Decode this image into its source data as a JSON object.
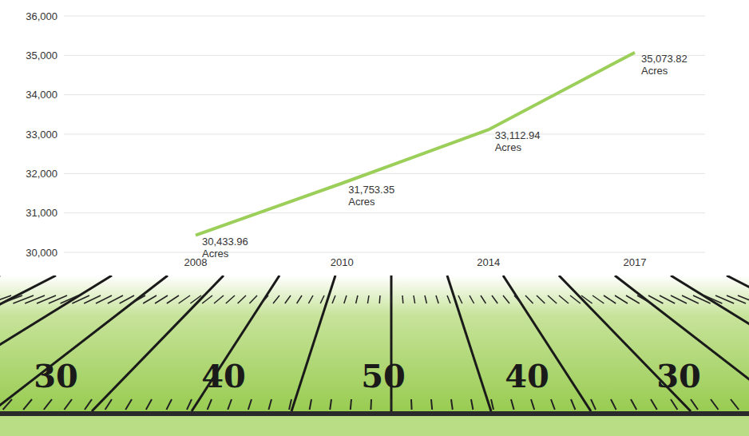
{
  "chart_data": {
    "type": "line",
    "categories": [
      "2008",
      "2010",
      "2014",
      "2017"
    ],
    "values": [
      30433.96,
      31753.35,
      33112.94,
      35073.82
    ],
    "value_labels": [
      "30,433.96 Acres",
      "31,753.35 Acres",
      "33,112.94 Acres",
      "35,073.82 Acres"
    ],
    "data_labels": true,
    "color": "#9ccf5a",
    "ylim": [
      30000,
      36000
    ],
    "yticks": [
      {
        "value": 30000,
        "label": "30,000"
      },
      {
        "value": 31000,
        "label": "31,000"
      },
      {
        "value": 32000,
        "label": "32,000"
      },
      {
        "value": 33000,
        "label": "33,000"
      },
      {
        "value": 34000,
        "label": "34,000"
      },
      {
        "value": 35000,
        "label": "35,000"
      },
      {
        "value": 36000,
        "label": "36,000"
      }
    ],
    "grid": true,
    "annotations": [
      "30",
      "40",
      "50",
      "40",
      "30"
    ]
  }
}
